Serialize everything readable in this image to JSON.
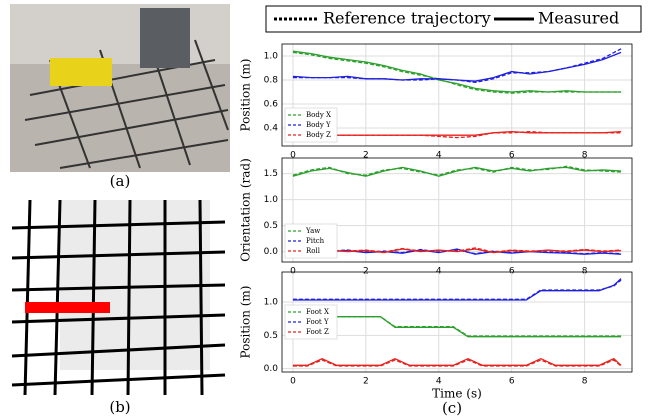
{
  "figure": {
    "legend": {
      "reference": "Reference trajectory",
      "measured": "Measured"
    },
    "captions": [
      "(a)",
      "(b)",
      "(c)"
    ]
  },
  "chart_data": [
    {
      "type": "line",
      "ylabel": "Position (m)",
      "legend": "lower left",
      "x": [
        0,
        0.5,
        1,
        1.5,
        2,
        2.5,
        3,
        3.5,
        4,
        4.5,
        5,
        5.5,
        6,
        6.5,
        7,
        7.5,
        8,
        8.5,
        9
      ],
      "xlim": [
        -0.3,
        9.3
      ],
      "xticks": [
        0,
        2,
        4,
        6,
        8
      ],
      "ylim": [
        0.25,
        1.1
      ],
      "yticks": [
        0.4,
        0.6,
        0.8,
        {
          "value": 1,
          "label": "1.0"
        }
      ],
      "grid": true,
      "series": [
        {
          "name": "Body X",
          "color": "#2ca02c",
          "values": [
            1.04,
            1.02,
            0.99,
            0.97,
            0.95,
            0.92,
            0.88,
            0.85,
            0.8,
            0.77,
            0.73,
            0.71,
            0.7,
            0.71,
            0.7,
            0.71,
            0.7,
            0.7,
            0.7
          ],
          "reference_values": [
            1.03,
            1.01,
            0.98,
            0.96,
            0.94,
            0.91,
            0.87,
            0.84,
            0.81,
            0.76,
            0.72,
            0.7,
            0.69,
            0.7,
            0.7,
            0.7,
            0.7,
            0.7,
            0.7
          ]
        },
        {
          "name": "Body Y",
          "color": "#1f1fdd",
          "values": [
            0.83,
            0.82,
            0.82,
            0.83,
            0.81,
            0.81,
            0.8,
            0.81,
            0.81,
            0.8,
            0.79,
            0.82,
            0.87,
            0.85,
            0.87,
            0.9,
            0.93,
            0.97,
            1.03
          ],
          "reference_values": [
            0.82,
            0.82,
            0.82,
            0.82,
            0.81,
            0.81,
            0.8,
            0.8,
            0.81,
            0.8,
            0.78,
            0.81,
            0.86,
            0.86,
            0.87,
            0.9,
            0.94,
            0.98,
            1.06
          ]
        },
        {
          "name": "Body Z",
          "color": "#e8211d",
          "values": [
            0.33,
            0.34,
            0.34,
            0.34,
            0.34,
            0.34,
            0.34,
            0.34,
            0.34,
            0.34,
            0.34,
            0.36,
            0.37,
            0.36,
            0.36,
            0.36,
            0.36,
            0.36,
            0.37
          ],
          "reference_values": [
            0.33,
            0.33,
            0.34,
            0.34,
            0.34,
            0.34,
            0.34,
            0.34,
            0.33,
            0.32,
            0.33,
            0.36,
            0.36,
            0.37,
            0.36,
            0.36,
            0.36,
            0.36,
            0.36
          ]
        }
      ]
    },
    {
      "type": "line",
      "ylabel": "Orientation (rad)",
      "legend": "lower left",
      "x": [
        0,
        0.5,
        1,
        1.5,
        2,
        2.5,
        3,
        3.5,
        4,
        4.5,
        5,
        5.5,
        6,
        6.5,
        7,
        7.5,
        8,
        8.5,
        9
      ],
      "xlim": [
        -0.3,
        9.3
      ],
      "xticks": [
        0,
        2,
        4,
        6,
        8
      ],
      "ylim": [
        -0.2,
        1.8
      ],
      "yticks": [
        {
          "value": 0,
          "label": "0.0"
        },
        0.5,
        {
          "value": 1,
          "label": "1.0"
        },
        1.5
      ],
      "grid": true,
      "series": [
        {
          "name": "Yaw",
          "color": "#2ca02c",
          "values": [
            1.45,
            1.55,
            1.6,
            1.52,
            1.45,
            1.55,
            1.62,
            1.55,
            1.45,
            1.55,
            1.62,
            1.55,
            1.6,
            1.55,
            1.6,
            1.62,
            1.55,
            1.57,
            1.55
          ],
          "reference_values": [
            1.47,
            1.57,
            1.62,
            1.5,
            1.47,
            1.57,
            1.6,
            1.53,
            1.47,
            1.57,
            1.6,
            1.53,
            1.62,
            1.57,
            1.58,
            1.64,
            1.57,
            1.55,
            1.53
          ]
        },
        {
          "name": "Pitch",
          "color": "#1f1fdd",
          "values": [
            0.0,
            -0.02,
            0.0,
            0.02,
            -0.02,
            0.0,
            -0.03,
            0.03,
            -0.02,
            0.05,
            -0.05,
            0.0,
            -0.03,
            0.0,
            -0.02,
            -0.03,
            -0.05,
            -0.03,
            -0.05
          ],
          "reference_values": [
            0.01,
            -0.01,
            0.01,
            0.03,
            -0.01,
            0.01,
            -0.02,
            0.04,
            -0.01,
            0.03,
            -0.04,
            0.01,
            -0.02,
            0.01,
            -0.01,
            -0.02,
            -0.04,
            -0.02,
            -0.04
          ]
        },
        {
          "name": "Roll",
          "color": "#e8211d",
          "values": [
            0.02,
            -0.01,
            0.03,
            0.0,
            0.02,
            -0.02,
            0.05,
            0.0,
            0.03,
            0.0,
            0.05,
            -0.02,
            0.02,
            0.0,
            0.03,
            0.0,
            0.03,
            0.0,
            0.02
          ],
          "reference_values": [
            0.03,
            0.0,
            0.02,
            0.01,
            0.03,
            -0.01,
            0.06,
            0.01,
            0.02,
            0.01,
            0.07,
            -0.01,
            0.03,
            0.01,
            0.02,
            0.01,
            0.04,
            0.01,
            0.03
          ]
        }
      ]
    },
    {
      "type": "line",
      "ylabel": "Position (m)",
      "xlabel": "Time (s)",
      "legend": "center left",
      "x": [
        0,
        0.4,
        0.8,
        1.2,
        1.6,
        2,
        2.4,
        2.8,
        3.2,
        3.6,
        4,
        4.4,
        4.8,
        5.2,
        5.6,
        6,
        6.4,
        6.8,
        7.2,
        7.6,
        8,
        8.4,
        8.8,
        9
      ],
      "xlim": [
        -0.3,
        9.3
      ],
      "xticks": [
        0,
        2,
        4,
        6,
        8
      ],
      "ylim": [
        -0.05,
        1.45
      ],
      "yticks": [
        {
          "value": 0,
          "label": "0.0"
        },
        0.5,
        {
          "value": 1,
          "label": "1.0"
        }
      ],
      "grid": true,
      "series": [
        {
          "name": "Foot X",
          "color": "#2ca02c",
          "values": [
            0.78,
            0.78,
            0.78,
            0.78,
            0.78,
            0.78,
            0.78,
            0.62,
            0.62,
            0.62,
            0.62,
            0.62,
            0.48,
            0.48,
            0.48,
            0.48,
            0.48,
            0.48,
            0.48,
            0.48,
            0.48,
            0.48,
            0.48,
            0.48
          ],
          "reference_values": [
            0.78,
            0.78,
            0.78,
            0.78,
            0.78,
            0.78,
            0.78,
            0.63,
            0.63,
            0.63,
            0.63,
            0.63,
            0.49,
            0.49,
            0.49,
            0.49,
            0.49,
            0.49,
            0.49,
            0.49,
            0.49,
            0.49,
            0.49,
            0.49
          ]
        },
        {
          "name": "Foot Y",
          "color": "#1f1fdd",
          "values": [
            1.03,
            1.03,
            1.03,
            1.03,
            1.03,
            1.03,
            1.03,
            1.03,
            1.03,
            1.03,
            1.03,
            1.03,
            1.03,
            1.03,
            1.03,
            1.03,
            1.03,
            1.17,
            1.17,
            1.17,
            1.17,
            1.17,
            1.25,
            1.35
          ],
          "reference_values": [
            1.04,
            1.04,
            1.04,
            1.04,
            1.04,
            1.04,
            1.04,
            1.04,
            1.04,
            1.04,
            1.04,
            1.04,
            1.04,
            1.04,
            1.04,
            1.04,
            1.04,
            1.18,
            1.18,
            1.18,
            1.18,
            1.18,
            1.24,
            1.33
          ]
        },
        {
          "name": "Foot Z",
          "color": "#e8211d",
          "values": [
            0.05,
            0.05,
            0.15,
            0.05,
            0.05,
            0.05,
            0.05,
            0.15,
            0.05,
            0.05,
            0.05,
            0.05,
            0.15,
            0.05,
            0.05,
            0.05,
            0.05,
            0.15,
            0.05,
            0.05,
            0.05,
            0.05,
            0.15,
            0.05
          ],
          "reference_values": [
            0.04,
            0.04,
            0.13,
            0.04,
            0.04,
            0.04,
            0.04,
            0.13,
            0.04,
            0.04,
            0.04,
            0.04,
            0.13,
            0.04,
            0.04,
            0.04,
            0.04,
            0.13,
            0.04,
            0.04,
            0.04,
            0.04,
            0.13,
            0.04
          ]
        }
      ]
    }
  ]
}
